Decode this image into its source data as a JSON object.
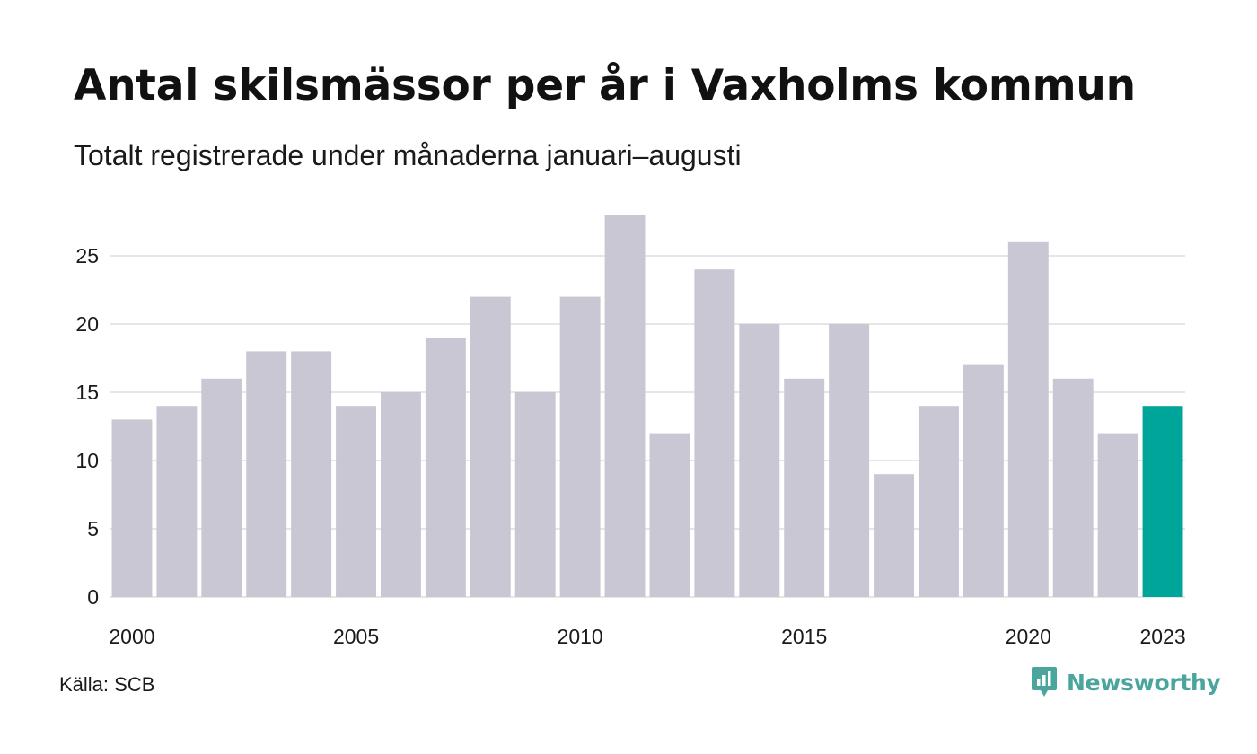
{
  "header": {
    "title": "Antal skilsmässor per år i Vaxholms kommun",
    "subtitle": "Totalt registrerade under månaderna januari–augusti"
  },
  "footer": {
    "source": "Källa: SCB",
    "brand": "Newsworthy",
    "brand_icon": "newsworthy-logo-icon"
  },
  "colors": {
    "bar": "#c8c7d3",
    "highlight": "#00a59a",
    "grid": "#e6e6e6",
    "brand": "#4aa59c"
  },
  "chart_data": {
    "type": "bar",
    "categories": [
      "2000",
      "2001",
      "2002",
      "2003",
      "2004",
      "2005",
      "2006",
      "2007",
      "2008",
      "2009",
      "2010",
      "2011",
      "2012",
      "2013",
      "2014",
      "2015",
      "2016",
      "2017",
      "2018",
      "2019",
      "2020",
      "2021",
      "2022",
      "2023"
    ],
    "values": [
      13,
      14,
      16,
      18,
      18,
      14,
      15,
      19,
      22,
      15,
      22,
      28,
      12,
      24,
      20,
      16,
      20,
      9,
      14,
      17,
      26,
      16,
      12,
      14
    ],
    "highlight": "2023",
    "x_tick_labels": [
      "2000",
      "2005",
      "2010",
      "2015",
      "2020",
      "2023"
    ],
    "y_ticks": [
      0,
      5,
      10,
      15,
      20,
      25
    ],
    "ylim": [
      0,
      28
    ],
    "grid": true,
    "legend": "none",
    "xlabel": "",
    "ylabel": ""
  }
}
